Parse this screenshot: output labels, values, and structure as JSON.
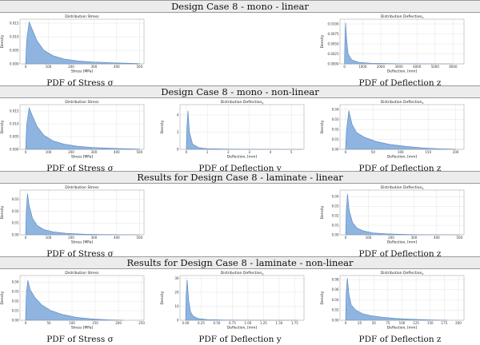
{
  "colors": {
    "fill": "#8fb4e0",
    "stroke": "#4f86c6",
    "grid": "#e3e3e3",
    "band": "#ececec"
  },
  "sections": [
    {
      "title": "Design Case 8 - mono - linear",
      "panels": [
        {
          "slot": 0,
          "caption": "PDF of Stress σ",
          "chart_data": {
            "type": "area",
            "title": "Distribution Stress",
            "xlabel": "Stress [MPa]",
            "ylabel": "Density",
            "xlim": [
              -25,
              520
            ],
            "ylim": [
              0,
              0.0165
            ],
            "xticks": [
              0,
              100,
              200,
              300,
              400,
              500
            ],
            "yticks": [
              0,
              0.005,
              0.01,
              0.015
            ],
            "ytick_labels": [
              "0.000",
              "0.005",
              "0.010",
              "0.015"
            ],
            "x": [
              0,
              5,
              15,
              30,
              50,
              80,
              120,
              170,
              230,
              300,
              380,
              450,
              500
            ],
            "y": [
              0,
              0.009,
              0.0155,
              0.0125,
              0.0085,
              0.005,
              0.003,
              0.0018,
              0.0011,
              0.0007,
              0.0004,
              0.00025,
              0.0001
            ]
          }
        },
        {
          "slot": 2,
          "caption": "PDF of Deflection z",
          "chart_data": {
            "type": "area",
            "title": "Distribution Deflection",
            "title_sub": "z",
            "xlabel": "Deflection, [mm]",
            "ylabel": "Density",
            "xlim": [
              -250,
              6600
            ],
            "ylim": [
              0,
              0.0112
            ],
            "xticks": [
              0,
              1000,
              2000,
              3000,
              4000,
              5000,
              6000
            ],
            "yticks": [
              0,
              0.0025,
              0.005,
              0.0075,
              0.01
            ],
            "ytick_labels": [
              "0.0000",
              "0.0025",
              "0.0050",
              "0.0075",
              "0.0100"
            ],
            "x": [
              0,
              20,
              60,
              120,
              200,
              400,
              800,
              1500,
              3000,
              6000
            ],
            "y": [
              0,
              0.005,
              0.0103,
              0.006,
              0.0025,
              0.001,
              0.0004,
              0.00015,
              5e-05,
              0
            ]
          }
        }
      ]
    },
    {
      "title": "Design Case 8 - mono - non-linear",
      "panels": [
        {
          "slot": 0,
          "caption": "PDF of Stress σ",
          "chart_data": {
            "type": "area",
            "title": "Distribution Stress",
            "xlabel": "Stress [MPa]",
            "ylabel": "Density",
            "xlim": [
              -25,
              520
            ],
            "ylim": [
              0,
              0.0175
            ],
            "xticks": [
              0,
              100,
              200,
              300,
              400,
              500
            ],
            "yticks": [
              0,
              0.005,
              0.01,
              0.015
            ],
            "ytick_labels": [
              "0.000",
              "0.005",
              "0.010",
              "0.015"
            ],
            "x": [
              0,
              5,
              15,
              30,
              50,
              80,
              120,
              170,
              230,
              300,
              380,
              450,
              500
            ],
            "y": [
              0,
              0.01,
              0.0163,
              0.013,
              0.009,
              0.0055,
              0.0033,
              0.002,
              0.0012,
              0.0007,
              0.0004,
              0.0002,
              0.0001
            ]
          }
        },
        {
          "slot": 1,
          "caption": "PDF of Deflection y",
          "chart_data": {
            "type": "area",
            "title": "Distribution Deflection",
            "title_sub": "y",
            "xlabel": "Deflection, [mm]",
            "ylabel": "Density",
            "xlim": [
              -0.3,
              5.6
            ],
            "ylim": [
              0,
              5.2
            ],
            "xticks": [
              0,
              1,
              2,
              3,
              4,
              5
            ],
            "yticks": [
              0,
              2,
              4
            ],
            "ytick_labels": [
              "0",
              "2",
              "4"
            ],
            "x": [
              0,
              0.03,
              0.08,
              0.15,
              0.3,
              0.6,
              1.0,
              2.0,
              3.5,
              5.5
            ],
            "y": [
              0,
              2.5,
              4.5,
              2.0,
              0.6,
              0.2,
              0.08,
              0.03,
              0.01,
              0
            ]
          }
        },
        {
          "slot": 2,
          "caption": "PDF of Deflection z",
          "chart_data": {
            "type": "area",
            "title": "Distribution Deflection",
            "title_sub": "z",
            "xlabel": "Deflection, [mm]",
            "ylabel": "Density",
            "xlim": [
              -10,
              215
            ],
            "ylim": [
              0,
              0.045
            ],
            "xticks": [
              0,
              50,
              100,
              150,
              200
            ],
            "yticks": [
              0,
              0.01,
              0.02,
              0.03,
              0.04
            ],
            "ytick_labels": [
              "0.00",
              "0.01",
              "0.02",
              "0.03",
              "0.04"
            ],
            "x": [
              0,
              2,
              6,
              12,
              20,
              35,
              55,
              80,
              110,
              140,
              170,
              200
            ],
            "y": [
              0,
              0.02,
              0.039,
              0.025,
              0.017,
              0.012,
              0.008,
              0.005,
              0.003,
              0.0015,
              0.0006,
              0.0002
            ]
          }
        }
      ]
    },
    {
      "title": "Results for Design Case 8 - laminate - linear",
      "panels": [
        {
          "slot": 0,
          "caption": "PDF of Stress σ",
          "chart_data": {
            "type": "area",
            "title": "Distribution Stress",
            "xlabel": "Stress [MPa]",
            "ylabel": "Density",
            "xlim": [
              -25,
              520
            ],
            "ylim": [
              0,
              0.038
            ],
            "xticks": [
              0,
              100,
              200,
              300,
              400,
              500
            ],
            "yticks": [
              0,
              0.01,
              0.02,
              0.03
            ],
            "ytick_labels": [
              "0.00",
              "0.01",
              "0.02",
              "0.03"
            ],
            "x": [
              0,
              3,
              8,
              15,
              30,
              50,
              80,
              120,
              180,
              260,
              350,
              500
            ],
            "y": [
              0,
              0.02,
              0.035,
              0.025,
              0.014,
              0.008,
              0.0045,
              0.0025,
              0.0012,
              0.0005,
              0.0002,
              0
            ]
          }
        },
        {
          "slot": 2,
          "caption": "PDF of Deflection z",
          "chart_data": {
            "type": "area",
            "title": "Distribution Deflection",
            "title_sub": "z",
            "xlabel": "Deflection, [mm]",
            "ylabel": "Density",
            "xlim": [
              -25,
              520
            ],
            "ylim": [
              0,
              0.047
            ],
            "xticks": [
              0,
              100,
              200,
              300,
              400,
              500
            ],
            "yticks": [
              0,
              0.01,
              0.02,
              0.03,
              0.04
            ],
            "ytick_labels": [
              "0.00",
              "0.01",
              "0.02",
              "0.03",
              "0.04"
            ],
            "x": [
              0,
              3,
              8,
              15,
              30,
              50,
              80,
              120,
              180,
              260,
              350,
              500
            ],
            "y": [
              0,
              0.025,
              0.043,
              0.026,
              0.013,
              0.007,
              0.004,
              0.002,
              0.001,
              0.0004,
              0.0001,
              0
            ]
          }
        }
      ]
    },
    {
      "title": "Results for Design Case 8 - laminate - non-linear",
      "panels": [
        {
          "slot": 0,
          "caption": "PDF of Stress σ",
          "chart_data": {
            "type": "area",
            "title": "Distribution Stress",
            "xlabel": "Stress [MPa]",
            "ylabel": "Density",
            "xlim": [
              -12,
              255
            ],
            "ylim": [
              0,
              0.047
            ],
            "xticks": [
              0,
              50,
              100,
              150,
              200,
              250
            ],
            "yticks": [
              0,
              0.01,
              0.02,
              0.03,
              0.04
            ],
            "ytick_labels": [
              "0.00",
              "0.01",
              "0.02",
              "0.03",
              "0.04"
            ],
            "x": [
              0,
              2,
              5,
              10,
              20,
              35,
              55,
              80,
              110,
              140,
              175,
              210
            ],
            "y": [
              0,
              0.03,
              0.042,
              0.032,
              0.024,
              0.016,
              0.01,
              0.006,
              0.003,
              0.0015,
              0.0005,
              0.0001
            ]
          }
        },
        {
          "slot": 1,
          "caption": "PDF of Deflection y",
          "chart_data": {
            "type": "area",
            "title": "Distribution Deflection",
            "title_sub": "y",
            "xlabel": "Deflection, [mm]",
            "ylabel": "Density",
            "xlim": [
              -0.09,
              1.9
            ],
            "ylim": [
              0,
              32
            ],
            "xticks": [
              0,
              0.25,
              0.5,
              0.75,
              1.0,
              1.25,
              1.5,
              1.75
            ],
            "yticks": [
              0,
              10,
              20,
              30
            ],
            "xtick_labels": [
              "0.00",
              "0.25",
              "0.50",
              "0.75",
              "1.00",
              "1.25",
              "1.50",
              "1.75"
            ],
            "ytick_labels": [
              "0",
              "10",
              "20",
              "30"
            ],
            "x": [
              0,
              0.01,
              0.025,
              0.05,
              0.08,
              0.12,
              0.2,
              0.35,
              0.6,
              1.0,
              1.8
            ],
            "y": [
              0,
              18,
              29,
              14,
              6,
              3,
              1.2,
              0.5,
              0.2,
              0.05,
              0
            ]
          }
        },
        {
          "slot": 2,
          "caption": "PDF of Deflection z",
          "chart_data": {
            "type": "area",
            "title": "Distribution Deflection",
            "title_sub": "z",
            "xlabel": "Deflection, [mm]",
            "ylabel": "Density",
            "xlim": [
              -10,
              210
            ],
            "ylim": [
              0,
              0.088
            ],
            "xticks": [
              0,
              25,
              50,
              75,
              100,
              125,
              150,
              175,
              200
            ],
            "yticks": [
              0,
              0.02,
              0.04,
              0.06,
              0.08
            ],
            "ytick_labels": [
              "0.00",
              "0.02",
              "0.04",
              "0.06",
              "0.08"
            ],
            "x": [
              0,
              1,
              3,
              6,
              10,
              18,
              30,
              45,
              65,
              90,
              120,
              150,
              180
            ],
            "y": [
              0,
              0.05,
              0.083,
              0.05,
              0.03,
              0.02,
              0.013,
              0.009,
              0.006,
              0.0035,
              0.0018,
              0.0007,
              0.0002
            ]
          }
        }
      ]
    }
  ]
}
